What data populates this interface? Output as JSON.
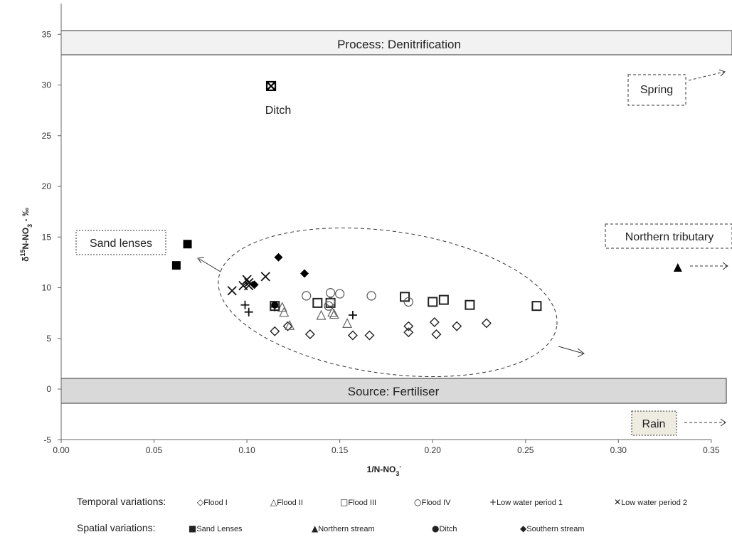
{
  "chart_data": {
    "type": "scatter",
    "xlabel": "1/N-NO",
    "xlabel_sub": "3",
    "xlabel_sup": "-",
    "ylabel": "δ",
    "ylabel_sup": "15",
    "ylabel_rest": "N-NO",
    "ylabel_sub": "3",
    "ylabel_tail": " - ‰",
    "xlim": [
      0.0,
      0.36
    ],
    "ylim": [
      -5,
      37
    ],
    "xticks": [
      "0.00",
      "0.05",
      "0.10",
      "0.15",
      "0.20",
      "0.25",
      "0.30",
      "0.35"
    ],
    "yticks": [
      "-5",
      "0",
      "5",
      "10",
      "15",
      "20",
      "25",
      "30",
      "35"
    ],
    "grid": false,
    "series": [
      {
        "name": "Flood I",
        "marker": "diamond-open",
        "points": [
          [
            0.115,
            5.7
          ],
          [
            0.122,
            6.2
          ],
          [
            0.134,
            5.4
          ],
          [
            0.157,
            5.3
          ],
          [
            0.166,
            5.3
          ],
          [
            0.187,
            5.6
          ],
          [
            0.187,
            6.2
          ],
          [
            0.201,
            6.6
          ],
          [
            0.202,
            5.4
          ],
          [
            0.213,
            6.2
          ],
          [
            0.229,
            6.5
          ]
        ]
      },
      {
        "name": "Flood II",
        "marker": "triangle-open",
        "points": [
          [
            0.119,
            8.1
          ],
          [
            0.12,
            7.6
          ],
          [
            0.123,
            6.3
          ],
          [
            0.14,
            7.3
          ],
          [
            0.146,
            7.6
          ],
          [
            0.147,
            7.4
          ],
          [
            0.154,
            6.5
          ]
        ]
      },
      {
        "name": "Flood III",
        "marker": "square-open",
        "points": [
          [
            0.115,
            8.2
          ],
          [
            0.138,
            8.5
          ],
          [
            0.145,
            8.5
          ],
          [
            0.185,
            9.1
          ],
          [
            0.2,
            8.6
          ],
          [
            0.206,
            8.8
          ],
          [
            0.22,
            8.3
          ],
          [
            0.256,
            8.2
          ]
        ]
      },
      {
        "name": "Flood IV",
        "marker": "circle-open",
        "points": [
          [
            0.132,
            9.2
          ],
          [
            0.144,
            8.2
          ],
          [
            0.145,
            9.5
          ],
          [
            0.145,
            8.6
          ],
          [
            0.15,
            9.4
          ],
          [
            0.167,
            9.2
          ],
          [
            0.187,
            8.6
          ]
        ]
      },
      {
        "name": "Low water period 1",
        "marker": "plus",
        "points": [
          [
            0.099,
            8.3
          ],
          [
            0.101,
            7.6
          ],
          [
            0.115,
            8.1
          ],
          [
            0.157,
            7.3
          ]
        ]
      },
      {
        "name": "Low water period 2",
        "marker": "x",
        "points": [
          [
            0.092,
            9.7
          ],
          [
            0.098,
            10.2
          ],
          [
            0.1,
            10.8
          ],
          [
            0.101,
            10.5
          ],
          [
            0.101,
            10.2
          ],
          [
            0.11,
            11.1
          ]
        ]
      },
      {
        "name": "Sand Lenses",
        "marker": "square-filled",
        "points": [
          [
            0.062,
            12.2
          ],
          [
            0.068,
            14.3
          ]
        ]
      },
      {
        "name": "Northern stream",
        "marker": "triangle-filled",
        "points": [
          [
            0.332,
            12.0
          ]
        ]
      },
      {
        "name": "Ditch",
        "marker": "circle-filled",
        "points": [
          [
            0.115,
            8.3
          ]
        ]
      },
      {
        "name": "Southern stream",
        "marker": "diamond-filled",
        "points": [
          [
            0.104,
            10.3
          ],
          [
            0.117,
            13.0
          ],
          [
            0.131,
            11.4
          ]
        ]
      },
      {
        "name": "Ditch",
        "marker": "boxed-x",
        "points": [
          [
            0.113,
            29.9
          ]
        ]
      }
    ],
    "bands": [
      {
        "label": "Process: Denitrification",
        "y_from": 33,
        "y_to": 35.5,
        "color": "#f2f2f2"
      },
      {
        "label": "Source: Fertiliser",
        "y_from": -1.5,
        "y_to": 1.0,
        "color": "#d9d9d9"
      }
    ],
    "annotations": [
      {
        "label": "Ditch",
        "x": 0.113,
        "y": 27.5
      },
      {
        "label": "Spring",
        "x": 0.321,
        "y": 29.9
      },
      {
        "label": "Sand lenses",
        "x": 0.026,
        "y": 14.2
      },
      {
        "label": "Northern tributary",
        "x": 0.339,
        "y": 14.9
      },
      {
        "label": "Rain",
        "x": 0.318,
        "y": -3.5
      }
    ],
    "legend": {
      "temporal_label": "Temporal variations:",
      "temporal_items": [
        {
          "glyph": "◇",
          "label": "Flood I"
        },
        {
          "glyph": "△",
          "label": "Flood II"
        },
        {
          "glyph": "□",
          "label": "Flood III"
        },
        {
          "glyph": "○",
          "label": "Flood IV"
        },
        {
          "glyph": "+",
          "label": "Low water period 1"
        },
        {
          "glyph": "✕",
          "label": "Low water period 2"
        }
      ],
      "spatial_label": "Spatial variations:",
      "spatial_items": [
        {
          "glyph": "■",
          "label": "Sand Lenses"
        },
        {
          "glyph": "▲",
          "label": "Northern stream"
        },
        {
          "glyph": "●",
          "label": "Ditch"
        },
        {
          "glyph": "◆",
          "label": "Southern stream"
        }
      ]
    }
  }
}
